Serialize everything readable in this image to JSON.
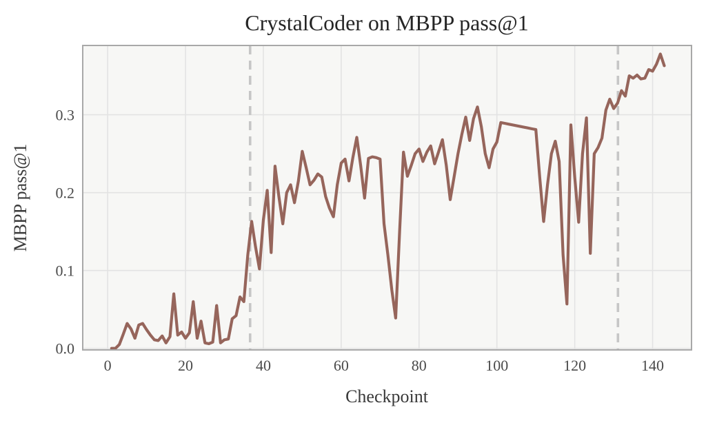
{
  "figure": {
    "title": "CrystalCoder on MBPP pass@1",
    "xlabel": "Checkpoint",
    "ylabel": "MBPP pass@1"
  },
  "chart_data": {
    "type": "line",
    "title": "CrystalCoder on MBPP pass@1",
    "xlabel": "Checkpoint",
    "ylabel": "MBPP pass@1",
    "series_name": "MBPP pass@1",
    "grid": true,
    "legend": "none",
    "xlim": [
      -6.4,
      150.0
    ],
    "ylim": [
      -0.002,
      0.389
    ],
    "xticks": [
      0,
      20,
      40,
      60,
      80,
      100,
      120,
      140
    ],
    "xtick_labels": [
      "0",
      "20",
      "40",
      "60",
      "80",
      "100",
      "120",
      "140"
    ],
    "yticks": [
      0.0,
      0.1,
      0.2,
      0.3
    ],
    "ytick_labels": [
      "0.0",
      "0.1",
      "0.2",
      "0.3"
    ],
    "vlines": [
      36.6,
      131.1
    ],
    "vline_style": "dashed",
    "colors": {
      "line": "#96655b",
      "plot_background": "#f7f7f5",
      "figure_background": "#ffffff",
      "grid": "#e3e3e3",
      "spine": "#a8a8a8",
      "vline": "#c6c6c6",
      "title_text": "#262626",
      "label_text": "#3a3a3a",
      "tick_text": "#4a4a4a"
    },
    "x": [
      1,
      2,
      3,
      4,
      5,
      6,
      7,
      8,
      9,
      10,
      11,
      12,
      13,
      14,
      15,
      16,
      17,
      18,
      19,
      20,
      21,
      22,
      23,
      24,
      25,
      26,
      27,
      28,
      29,
      30,
      31,
      32,
      33,
      34,
      35,
      36,
      37,
      38,
      39,
      40,
      41,
      42,
      43,
      44,
      45,
      46,
      47,
      48,
      49,
      50,
      51,
      52,
      53,
      54,
      55,
      56,
      57,
      58,
      59,
      60,
      61,
      62,
      63,
      64,
      65,
      66,
      67,
      68,
      69,
      70,
      71,
      72,
      73,
      74,
      75,
      76,
      77,
      78,
      79,
      80,
      81,
      82,
      83,
      84,
      85,
      86,
      87,
      88,
      89,
      90,
      91,
      92,
      93,
      94,
      95,
      96,
      97,
      98,
      99,
      100,
      101,
      102,
      103,
      104,
      105,
      106,
      107,
      108,
      109,
      110,
      111,
      112,
      113,
      114,
      115,
      116,
      117,
      118,
      119,
      120,
      121,
      122,
      123,
      124,
      125,
      126,
      127,
      128,
      129,
      130,
      131,
      132,
      133,
      134,
      135,
      136,
      137,
      138,
      139,
      140,
      141,
      142,
      143
    ],
    "values": [
      0.0,
      0.0,
      0.005,
      0.018,
      0.032,
      0.025,
      0.013,
      0.03,
      0.032,
      0.024,
      0.017,
      0.011,
      0.01,
      0.016,
      0.007,
      0.015,
      0.07,
      0.017,
      0.021,
      0.013,
      0.02,
      0.06,
      0.013,
      0.035,
      0.007,
      0.006,
      0.008,
      0.055,
      0.007,
      0.011,
      0.012,
      0.038,
      0.042,
      0.066,
      0.06,
      0.12,
      0.163,
      0.13,
      0.102,
      0.165,
      0.203,
      0.123,
      0.234,
      0.195,
      0.16,
      0.2,
      0.21,
      0.187,
      0.215,
      0.253,
      0.232,
      0.21,
      0.216,
      0.224,
      0.22,
      0.195,
      0.18,
      0.169,
      0.21,
      0.238,
      0.243,
      0.215,
      0.245,
      0.271,
      0.235,
      0.193,
      0.244,
      0.246,
      0.245,
      0.243,
      0.16,
      0.12,
      0.075,
      0.039,
      0.15,
      0.252,
      0.221,
      0.235,
      0.25,
      0.256,
      0.24,
      0.252,
      0.26,
      0.237,
      0.252,
      0.268,
      0.235,
      0.191,
      0.22,
      0.25,
      0.275,
      0.297,
      0.267,
      0.295,
      0.31,
      0.285,
      0.25,
      0.232,
      0.256,
      0.265,
      0.29,
      0.289,
      0.288,
      0.287,
      0.286,
      0.285,
      0.284,
      0.283,
      0.282,
      0.281,
      0.22,
      0.163,
      0.21,
      0.25,
      0.266,
      0.24,
      0.12,
      0.057,
      0.287,
      0.22,
      0.162,
      0.25,
      0.296,
      0.122,
      0.25,
      0.258,
      0.27,
      0.306,
      0.32,
      0.308,
      0.315,
      0.331,
      0.324,
      0.35,
      0.347,
      0.351,
      0.346,
      0.347,
      0.358,
      0.356,
      0.365,
      0.378,
      0.363
    ]
  }
}
